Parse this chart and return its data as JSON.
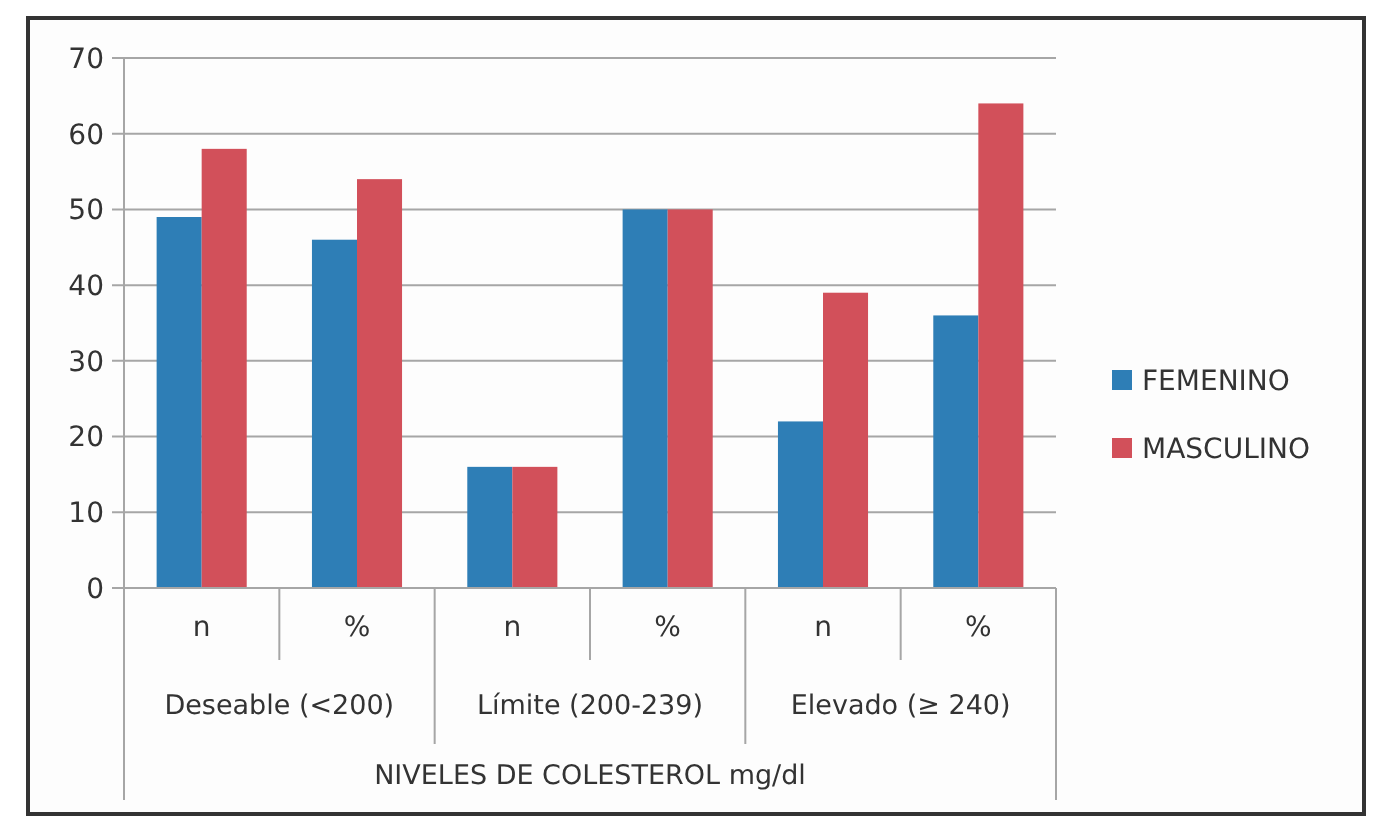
{
  "chart_data": {
    "type": "bar",
    "xlabel": "NIVELES DE COLESTEROL mg/dl",
    "categories": [
      "n",
      "%",
      "n",
      "%",
      "n",
      "%"
    ],
    "annotations": [
      "Deseable (<200)",
      "Límite (200-239)",
      "Elevado (≥ 240)"
    ],
    "series": [
      {
        "name": "FEMENINO",
        "color": "#2e7eb6",
        "values": [
          49,
          46,
          16,
          50,
          22,
          36
        ]
      },
      {
        "name": "MASCULINO",
        "color": "#d2505a",
        "values": [
          58,
          54,
          16,
          50,
          39,
          64
        ]
      }
    ],
    "ylim": [
      0,
      70
    ],
    "yticks": [
      0,
      10,
      20,
      30,
      40,
      50,
      60,
      70
    ],
    "grid": "y",
    "legend": "right"
  }
}
